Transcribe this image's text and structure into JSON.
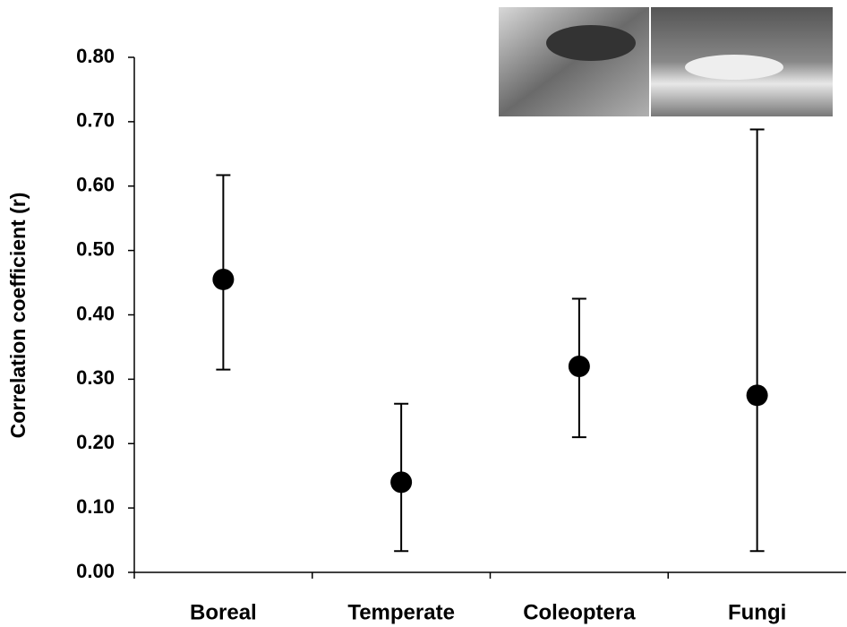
{
  "chart_data": {
    "type": "errorbar",
    "y_label": "Correlation coefficient (r)",
    "categories": [
      "Boreal",
      "Temperate",
      "Coleoptera",
      "Fungi"
    ],
    "values": [
      0.455,
      0.14,
      0.32,
      0.275
    ],
    "lower": [
      0.315,
      0.033,
      0.21,
      0.033
    ],
    "upper": [
      0.617,
      0.262,
      0.425,
      0.688
    ],
    "color": "#000000",
    "ylim": [
      0,
      0.8
    ],
    "yticks": [
      {
        "value": 0,
        "label": "0.00"
      },
      {
        "value": 0.1,
        "label": "0.10"
      },
      {
        "value": 0.2,
        "label": "0.20"
      },
      {
        "value": 0.3,
        "label": "0.30"
      },
      {
        "value": 0.4,
        "label": "0.40"
      },
      {
        "value": 0.5,
        "label": "0.50"
      },
      {
        "value": 0.6,
        "label": "0.60"
      },
      {
        "value": 0.7,
        "label": "0.70"
      },
      {
        "value": 0.8,
        "label": "0.80"
      }
    ],
    "grid": false
  }
}
